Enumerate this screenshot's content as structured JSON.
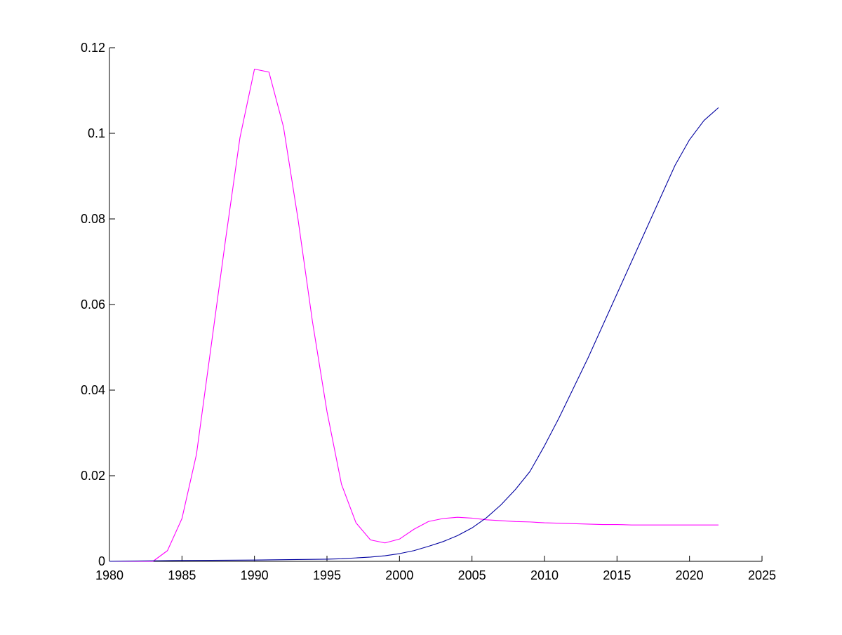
{
  "chart_data": {
    "type": "line",
    "title": "",
    "xlabel": "",
    "ylabel": "",
    "xlim": [
      1980,
      2025
    ],
    "ylim": [
      0,
      0.12
    ],
    "grid": false,
    "legend": "none",
    "x_ticks": [
      "1980",
      "1985",
      "1990",
      "1995",
      "2000",
      "2005",
      "2010",
      "2015",
      "2020",
      "2025"
    ],
    "y_ticks": [
      "0",
      "0.02",
      "0.04",
      "0.06",
      "0.08",
      "0.1",
      "0.12"
    ],
    "series": [
      {
        "color": "#ff00ff",
        "x": [
          1980,
          1981,
          1982,
          1983,
          1984,
          1985,
          1986,
          1987,
          1988,
          1989,
          1990,
          1991,
          1992,
          1993,
          1994,
          1995,
          1996,
          1997,
          1998,
          1999,
          2000,
          2001,
          2002,
          2003,
          2004,
          2005,
          2006,
          2007,
          2008,
          2009,
          2010,
          2011,
          2012,
          2013,
          2014,
          2015,
          2016,
          2017,
          2018,
          2019,
          2020,
          2021,
          2022
        ],
        "y": [
          0,
          0,
          0,
          0,
          0.0025,
          0.01,
          0.025,
          0.05,
          0.075,
          0.099,
          0.115,
          0.1143,
          0.1015,
          0.08,
          0.056,
          0.035,
          0.018,
          0.009,
          0.005,
          0.0043,
          0.0052,
          0.0075,
          0.0093,
          0.01,
          0.0103,
          0.0101,
          0.0097,
          0.0095,
          0.0093,
          0.0092,
          0.009,
          0.0089,
          0.0088,
          0.0087,
          0.0086,
          0.0086,
          0.0085,
          0.0085,
          0.0085,
          0.0085,
          0.0085,
          0.0085,
          0.0085
        ]
      },
      {
        "color": "#0000a0",
        "x": [
          1980,
          1985,
          1990,
          1995,
          1996,
          1997,
          1998,
          1999,
          2000,
          2001,
          2002,
          2003,
          2004,
          2005,
          2006,
          2007,
          2008,
          2009,
          2010,
          2011,
          2012,
          2013,
          2014,
          2015,
          2016,
          2017,
          2018,
          2019,
          2020,
          2021,
          2022
        ],
        "y": [
          0,
          0.0002,
          0.0003,
          0.0005,
          0.0006,
          0.0008,
          0.001,
          0.0013,
          0.0018,
          0.0025,
          0.0035,
          0.0046,
          0.006,
          0.0078,
          0.0102,
          0.0132,
          0.0168,
          0.021,
          0.027,
          0.0335,
          0.0405,
          0.0475,
          0.055,
          0.0625,
          0.07,
          0.0775,
          0.085,
          0.0925,
          0.0985,
          0.103,
          0.106
        ]
      }
    ]
  }
}
